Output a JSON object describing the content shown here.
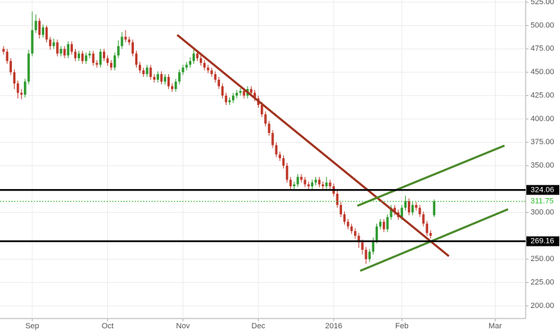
{
  "chart_data": {
    "type": "candlestick",
    "categories": [
      null,
      null,
      null,
      null,
      null,
      null,
      null,
      null,
      "Sep",
      null,
      null,
      null,
      null,
      null,
      null,
      null,
      null,
      null,
      null,
      null,
      null,
      null,
      null,
      null,
      null,
      null,
      null,
      null,
      null,
      "Oct",
      null,
      null,
      null,
      null,
      null,
      null,
      null,
      null,
      null,
      null,
      null,
      null,
      null,
      null,
      null,
      null,
      null,
      null,
      null,
      null,
      "Nov",
      null,
      null,
      null,
      null,
      null,
      null,
      null,
      null,
      null,
      null,
      null,
      null,
      null,
      null,
      null,
      null,
      null,
      null,
      null,
      null,
      "Dec",
      null,
      null,
      null,
      null,
      null,
      null,
      null,
      null,
      null,
      null,
      null,
      null,
      null,
      null,
      null,
      null,
      null,
      null,
      null,
      null,
      "2016",
      null,
      null,
      null,
      null,
      null,
      null,
      null,
      null,
      null,
      null,
      null,
      null,
      null,
      null,
      null,
      null,
      null,
      null,
      "Feb",
      null,
      null,
      null,
      null,
      null,
      null,
      null,
      null,
      null,
      null,
      null,
      null,
      null,
      null,
      null,
      null,
      null,
      null,
      null,
      null,
      null,
      null,
      null,
      null,
      null,
      "Mar",
      null,
      null,
      null,
      null,
      null,
      null,
      null,
      null
    ],
    "open": [
      475,
      472,
      462,
      450,
      438,
      428,
      426,
      440,
      470,
      495,
      505,
      490,
      498,
      485,
      478,
      482,
      470,
      475,
      468,
      480,
      472,
      465,
      470,
      462,
      468,
      470,
      460,
      458,
      472,
      465,
      460,
      455,
      468,
      478,
      488,
      485,
      482,
      470,
      458,
      452,
      448,
      455,
      445,
      442,
      448,
      440,
      445,
      435,
      432,
      440,
      450,
      455,
      458,
      462,
      470,
      465,
      460,
      455,
      452,
      448,
      442,
      435,
      425,
      418,
      420,
      425,
      428,
      430,
      425,
      432,
      428,
      422,
      415,
      405,
      395,
      385,
      372,
      362,
      358,
      350,
      335,
      328,
      330,
      338,
      335,
      330,
      328,
      332,
      335,
      330,
      328,
      332,
      328,
      320,
      308,
      298,
      290,
      285,
      280,
      275,
      268,
      260,
      250,
      258,
      270,
      285,
      290,
      282,
      295,
      305,
      300,
      295,
      305,
      312,
      300,
      308,
      305,
      298,
      288,
      278,
      297,
      null,
      null,
      null,
      null,
      null,
      null,
      null,
      null,
      null,
      null,
      null,
      null,
      null,
      null,
      null,
      null,
      null,
      null,
      null,
      null,
      null,
      null,
      null,
      null,
      null
    ],
    "high": [
      478,
      475,
      465,
      453,
      441,
      432,
      443,
      474,
      515,
      512,
      508,
      501,
      500,
      488,
      486,
      485,
      478,
      478,
      483,
      483,
      475,
      473,
      473,
      471,
      473,
      473,
      463,
      475,
      475,
      468,
      463,
      471,
      484,
      493,
      495,
      488,
      485,
      473,
      461,
      455,
      458,
      458,
      448,
      451,
      451,
      448,
      448,
      438,
      443,
      453,
      458,
      461,
      466,
      476,
      473,
      468,
      463,
      458,
      455,
      451,
      445,
      438,
      428,
      423,
      428,
      431,
      433,
      433,
      435,
      435,
      431,
      425,
      418,
      408,
      398,
      388,
      375,
      365,
      361,
      353,
      338,
      333,
      341,
      341,
      338,
      333,
      335,
      338,
      338,
      333,
      338,
      335,
      331,
      323,
      311,
      301,
      293,
      288,
      283,
      278,
      271,
      263,
      261,
      273,
      288,
      293,
      293,
      298,
      308,
      308,
      303,
      308,
      318,
      315,
      311,
      311,
      308,
      301,
      291,
      281,
      314,
      null,
      null,
      null,
      null,
      null,
      null,
      null,
      null,
      null,
      null,
      null,
      null,
      null,
      null,
      null,
      null,
      null,
      null,
      null,
      null,
      null,
      null,
      null,
      null,
      null
    ],
    "low": [
      469,
      459,
      447,
      432,
      422,
      421,
      423,
      437,
      467,
      492,
      486,
      487,
      482,
      474,
      475,
      467,
      467,
      465,
      465,
      469,
      462,
      462,
      459,
      459,
      465,
      457,
      455,
      455,
      462,
      457,
      452,
      452,
      465,
      475,
      482,
      479,
      467,
      455,
      449,
      445,
      445,
      442,
      439,
      439,
      437,
      437,
      432,
      429,
      429,
      437,
      447,
      452,
      455,
      459,
      462,
      457,
      452,
      449,
      445,
      439,
      432,
      422,
      415,
      415,
      417,
      422,
      425,
      422,
      422,
      425,
      419,
      412,
      402,
      392,
      382,
      369,
      359,
      355,
      347,
      332,
      325,
      325,
      327,
      332,
      327,
      325,
      325,
      329,
      327,
      325,
      325,
      325,
      317,
      305,
      295,
      287,
      282,
      277,
      272,
      262,
      255,
      245,
      247,
      255,
      267,
      282,
      279,
      279,
      292,
      297,
      292,
      292,
      302,
      297,
      297,
      302,
      295,
      285,
      275,
      272,
      295,
      null,
      null,
      null,
      null,
      null,
      null,
      null,
      null,
      null,
      null,
      null,
      null,
      null,
      null,
      null,
      null,
      null,
      null,
      null,
      null,
      null,
      null,
      null,
      null,
      null
    ],
    "close": [
      472,
      462,
      450,
      438,
      428,
      426,
      440,
      470,
      495,
      505,
      490,
      498,
      485,
      478,
      482,
      470,
      475,
      468,
      480,
      472,
      465,
      470,
      462,
      468,
      470,
      460,
      458,
      472,
      465,
      460,
      455,
      468,
      478,
      488,
      485,
      482,
      470,
      458,
      452,
      448,
      455,
      445,
      442,
      448,
      440,
      445,
      435,
      432,
      440,
      450,
      455,
      458,
      462,
      470,
      465,
      460,
      455,
      452,
      448,
      442,
      435,
      425,
      418,
      420,
      425,
      428,
      430,
      425,
      432,
      428,
      422,
      415,
      405,
      395,
      385,
      372,
      362,
      358,
      350,
      335,
      328,
      330,
      338,
      335,
      330,
      328,
      332,
      335,
      330,
      328,
      332,
      328,
      320,
      308,
      298,
      290,
      285,
      280,
      275,
      268,
      260,
      250,
      258,
      270,
      285,
      290,
      282,
      295,
      305,
      300,
      295,
      305,
      312,
      300,
      308,
      305,
      298,
      288,
      278,
      275,
      311.75,
      null,
      null,
      null,
      null,
      null,
      null,
      null,
      null,
      null,
      null,
      null,
      null,
      null,
      null,
      null,
      null,
      null,
      null,
      null,
      null,
      null,
      null,
      null,
      null,
      null
    ],
    "up_color": "#2f9a2f",
    "down_color": "#c0392b",
    "ylim": [
      186.5,
      527.3
    ],
    "yticks": [
      {
        "value": 200,
        "label": "200.00"
      },
      {
        "value": 225,
        "label": "225.00"
      },
      {
        "value": 250,
        "label": "250.00"
      },
      {
        "value": 300,
        "label": "300.00"
      },
      {
        "value": 350,
        "label": "350.00"
      },
      {
        "value": 375,
        "label": "375.00"
      },
      {
        "value": 400,
        "label": "400.00"
      },
      {
        "value": 425,
        "label": "425.00"
      },
      {
        "value": 450,
        "label": "450.00"
      },
      {
        "value": 475,
        "label": "475.00"
      },
      {
        "value": 500,
        "label": "500.00"
      },
      {
        "value": 525,
        "label": "525.00"
      }
    ],
    "grid": true,
    "levels": [
      {
        "value": 324.06,
        "color": "#000000",
        "dashed": false
      },
      {
        "value": 311.75,
        "color": "#2db82d",
        "dashed": true
      },
      {
        "value": 269.16,
        "color": "#000000",
        "dashed": false
      }
    ],
    "trendlines": [
      {
        "color": "#a0321e",
        "x": [
          48.4,
          124.1
        ],
        "y": [
          489.9,
          253.2
        ]
      },
      {
        "color": "#4a8a2a",
        "x": [
          98.6,
          139.6
        ],
        "y": [
          307.1,
          371.5
        ]
      },
      {
        "color": "#4a8a2a",
        "x": [
          99.4,
          140.6
        ],
        "y": [
          237.5,
          303.4
        ]
      }
    ]
  }
}
